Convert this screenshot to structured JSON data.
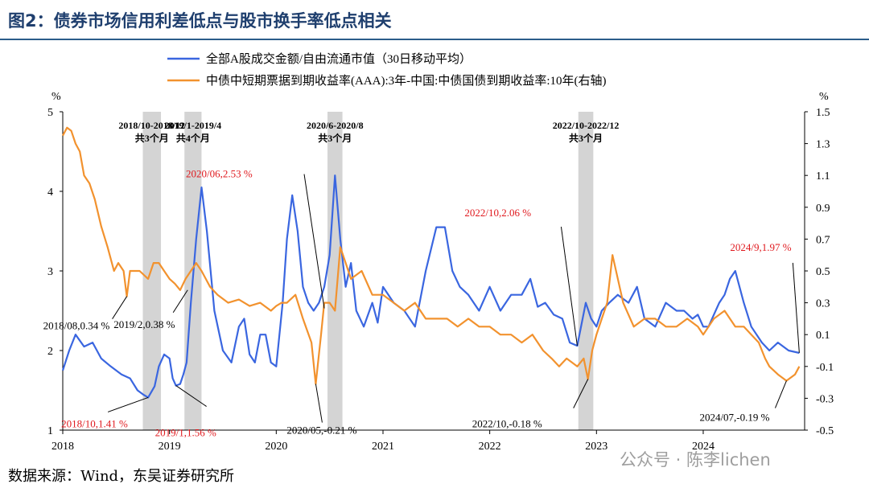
{
  "title": "图2：债券市场信用利差低点与股市换手率低点相关",
  "source": "数据来源：Wind，东吴证券研究所",
  "watermark": "公众号 · 陈李lichen",
  "colors": {
    "left_series": "#3a66e0",
    "right_series": "#f2922e",
    "shade": "#d4d4d4",
    "highlight": "#e0191e"
  },
  "chart_data": {
    "type": "line",
    "left_axis": {
      "unit": "%",
      "ylim": [
        1,
        5
      ],
      "ticks": [
        "1",
        "2",
        "3",
        "4",
        "5"
      ]
    },
    "right_axis": {
      "unit": "%",
      "ylim": [
        -0.5,
        1.5
      ],
      "ticks": [
        "-0.5",
        "-0.3",
        "-0.1",
        "0.1",
        "0.3",
        "0.5",
        "0.7",
        "0.9",
        "1.1",
        "1.3",
        "1.5"
      ]
    },
    "x_ticks": [
      "2018",
      "2019",
      "2020",
      "2021",
      "2022",
      "2023",
      "2024"
    ],
    "xlim": [
      2018.0,
      2024.95
    ],
    "series": [
      {
        "name": "全部A股成交金额/自由流通市值（30日移动平均）",
        "axis": "left",
        "x": [
          2018.0,
          2018.06,
          2018.12,
          2018.2,
          2018.28,
          2018.36,
          2018.45,
          2018.55,
          2018.63,
          2018.7,
          2018.75,
          2018.8,
          2018.86,
          2018.9,
          2018.95,
          2019.0,
          2019.03,
          2019.06,
          2019.1,
          2019.13,
          2019.16,
          2019.2,
          2019.25,
          2019.3,
          2019.35,
          2019.42,
          2019.5,
          2019.58,
          2019.65,
          2019.7,
          2019.75,
          2019.8,
          2019.85,
          2019.9,
          2019.95,
          2020.0,
          2020.06,
          2020.1,
          2020.15,
          2020.2,
          2020.25,
          2020.3,
          2020.35,
          2020.4,
          2020.45,
          2020.5,
          2020.55,
          2020.6,
          2020.65,
          2020.7,
          2020.75,
          2020.82,
          2020.9,
          2020.95,
          2021.0,
          2021.1,
          2021.2,
          2021.3,
          2021.4,
          2021.5,
          2021.58,
          2021.65,
          2021.72,
          2021.8,
          2021.9,
          2022.0,
          2022.1,
          2022.2,
          2022.3,
          2022.38,
          2022.45,
          2022.52,
          2022.6,
          2022.68,
          2022.75,
          2022.82,
          2022.9,
          2022.95,
          2023.0,
          2023.05,
          2023.12,
          2023.2,
          2023.3,
          2023.38,
          2023.45,
          2023.55,
          2023.65,
          2023.75,
          2023.82,
          2023.9,
          2023.95,
          2024.0,
          2024.05,
          2024.1,
          2024.15,
          2024.2,
          2024.25,
          2024.3,
          2024.38,
          2024.45,
          2024.55,
          2024.62,
          2024.7,
          2024.8,
          2024.9
        ],
        "y": [
          1.75,
          2.0,
          2.2,
          2.05,
          2.1,
          1.9,
          1.8,
          1.7,
          1.65,
          1.5,
          1.45,
          1.41,
          1.55,
          1.8,
          1.95,
          1.9,
          1.65,
          1.56,
          1.58,
          1.7,
          1.85,
          2.6,
          3.4,
          4.05,
          3.5,
          2.5,
          2.0,
          1.85,
          2.3,
          2.4,
          1.95,
          1.85,
          2.2,
          2.2,
          1.85,
          1.8,
          2.6,
          3.4,
          3.95,
          3.5,
          2.8,
          2.6,
          2.5,
          2.6,
          2.8,
          3.2,
          4.2,
          3.4,
          2.8,
          3.1,
          2.5,
          2.3,
          2.6,
          2.35,
          2.8,
          2.6,
          2.5,
          2.3,
          3.0,
          3.55,
          3.55,
          3.0,
          2.8,
          2.7,
          2.5,
          2.8,
          2.5,
          2.7,
          2.7,
          2.9,
          2.55,
          2.6,
          2.45,
          2.4,
          2.1,
          2.06,
          2.6,
          2.4,
          2.3,
          2.5,
          2.6,
          2.7,
          2.6,
          2.8,
          2.4,
          2.3,
          2.6,
          2.5,
          2.5,
          2.4,
          2.45,
          2.3,
          2.3,
          2.45,
          2.6,
          2.7,
          2.9,
          3.0,
          2.6,
          2.3,
          2.1,
          2.0,
          2.1,
          2.0,
          1.97
        ]
      },
      {
        "name": "中债中短期票据到期收益率(AAA):3年-中国:中债国债到期收益率:10年(右轴)",
        "axis": "right",
        "x": [
          2018.0,
          2018.04,
          2018.08,
          2018.12,
          2018.16,
          2018.2,
          2018.25,
          2018.3,
          2018.36,
          2018.42,
          2018.48,
          2018.52,
          2018.57,
          2018.6,
          2018.63,
          2018.68,
          2018.72,
          2018.8,
          2018.85,
          2018.9,
          2018.95,
          2019.0,
          2019.05,
          2019.1,
          2019.15,
          2019.2,
          2019.25,
          2019.3,
          2019.38,
          2019.45,
          2019.55,
          2019.65,
          2019.75,
          2019.85,
          2019.95,
          2020.0,
          2020.05,
          2020.1,
          2020.18,
          2020.25,
          2020.33,
          2020.37,
          2020.42,
          2020.45,
          2020.5,
          2020.55,
          2020.6,
          2020.65,
          2020.7,
          2020.8,
          2020.9,
          2021.0,
          2021.1,
          2021.2,
          2021.3,
          2021.4,
          2021.5,
          2021.6,
          2021.7,
          2021.8,
          2021.9,
          2022.0,
          2022.1,
          2022.2,
          2022.3,
          2022.4,
          2022.5,
          2022.58,
          2022.65,
          2022.72,
          2022.78,
          2022.82,
          2022.88,
          2022.92,
          2022.96,
          2023.0,
          2023.05,
          2023.1,
          2023.15,
          2023.25,
          2023.35,
          2023.45,
          2023.55,
          2023.65,
          2023.75,
          2023.85,
          2023.95,
          2024.0,
          2024.1,
          2024.2,
          2024.3,
          2024.38,
          2024.45,
          2024.52,
          2024.58,
          2024.62,
          2024.7,
          2024.78,
          2024.86,
          2024.9
        ],
        "y": [
          1.35,
          1.4,
          1.38,
          1.3,
          1.25,
          1.1,
          1.05,
          0.95,
          0.78,
          0.65,
          0.5,
          0.55,
          0.5,
          0.34,
          0.5,
          0.5,
          0.5,
          0.45,
          0.55,
          0.55,
          0.5,
          0.45,
          0.42,
          0.38,
          0.45,
          0.5,
          0.55,
          0.5,
          0.4,
          0.35,
          0.3,
          0.32,
          0.28,
          0.3,
          0.25,
          0.28,
          0.3,
          0.3,
          0.35,
          0.2,
          0.05,
          -0.21,
          0.1,
          0.3,
          0.3,
          0.25,
          0.65,
          0.55,
          0.45,
          0.5,
          0.35,
          0.35,
          0.3,
          0.25,
          0.3,
          0.2,
          0.2,
          0.2,
          0.15,
          0.2,
          0.15,
          0.15,
          0.1,
          0.1,
          0.05,
          0.1,
          0.0,
          -0.05,
          -0.1,
          -0.05,
          -0.08,
          -0.1,
          -0.05,
          -0.18,
          0.0,
          0.1,
          0.2,
          0.3,
          0.6,
          0.3,
          0.15,
          0.2,
          0.2,
          0.15,
          0.15,
          0.2,
          0.15,
          0.1,
          0.2,
          0.25,
          0.15,
          0.15,
          0.1,
          0.05,
          -0.05,
          -0.1,
          -0.15,
          -0.19,
          -0.15,
          -0.1
        ]
      }
    ],
    "shaded_periods": [
      {
        "label": "2018/10-2018/12",
        "sub": "共3个月",
        "from": 2018.75,
        "to": 2018.92
      },
      {
        "label": "2019/1-2019/4",
        "sub": "共4个月",
        "from": 2019.14,
        "to": 2019.3
      },
      {
        "label": "2020/6-2020/8",
        "sub": "共3个月",
        "from": 2020.48,
        "to": 2020.62
      },
      {
        "label": "2022/10-2022/12",
        "sub": "共3个月",
        "from": 2022.83,
        "to": 2022.97
      }
    ],
    "annotations": [
      {
        "text": "2018/08,0.34 %",
        "axis": "right",
        "x": 2018.6,
        "y": 0.34,
        "red": false
      },
      {
        "text": "2018/10,1.41 %",
        "axis": "left",
        "x": 2018.8,
        "y": 1.41,
        "red": true
      },
      {
        "text": "2019/2,0.38 %",
        "axis": "right",
        "x": 2019.17,
        "y": 0.38,
        "red": false
      },
      {
        "text": "2019/1,1.56 %",
        "axis": "left",
        "x": 2019.06,
        "y": 1.56,
        "red": true
      },
      {
        "text": "2020/06,2.53 %",
        "axis": "left",
        "x": 2020.45,
        "y": 2.53,
        "red": true
      },
      {
        "text": "2020/05,-0.21 %",
        "axis": "right",
        "x": 2020.37,
        "y": -0.21,
        "red": false
      },
      {
        "text": "2022/10,2.06 %",
        "axis": "left",
        "x": 2022.82,
        "y": 2.06,
        "red": true
      },
      {
        "text": "2022/10,-0.18 %",
        "axis": "right",
        "x": 2022.92,
        "y": -0.18,
        "red": false
      },
      {
        "text": "2024/9,1.97 %",
        "axis": "left",
        "x": 2024.9,
        "y": 1.97,
        "red": true
      },
      {
        "text": "2024/07,-0.19 %",
        "axis": "right",
        "x": 2024.78,
        "y": -0.19,
        "red": false
      }
    ],
    "legend_position": "top"
  }
}
